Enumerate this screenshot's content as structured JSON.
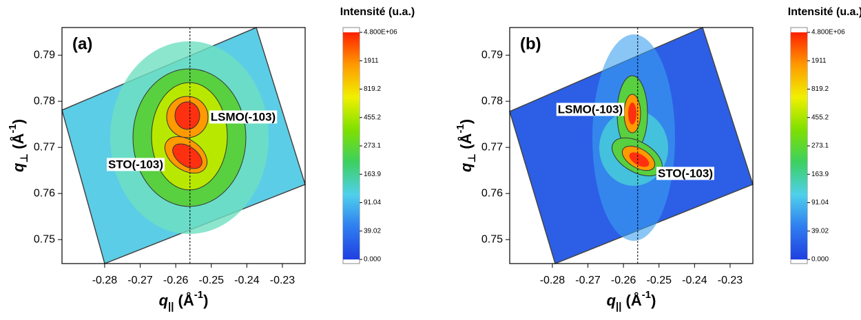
{
  "chart_data": [
    {
      "type": "heatmap",
      "panel_label": "(a)",
      "xlabel": [
        "q",
        "||",
        " (Å",
        "-1",
        ")"
      ],
      "ylabel": [
        "q",
        "⊥",
        " (Å",
        "-1",
        ")"
      ],
      "xlim": [
        -0.292,
        -0.2236
      ],
      "ylim": [
        0.7448,
        0.796
      ],
      "xticks": [
        -0.28,
        -0.27,
        -0.26,
        -0.25,
        -0.24,
        -0.23
      ],
      "yticks": [
        0.75,
        0.76,
        0.77,
        0.78,
        0.79
      ],
      "vline": -0.256,
      "annotations": [
        "LSMO(-103)",
        "STO(-103)"
      ],
      "colorbar": {
        "title": "Intensité (u.a.)",
        "colors": [
          "#1f3fe0",
          "#2f7df0",
          "#4fd0ec",
          "#3cd060",
          "#7fe000",
          "#f0f000",
          "#ff9a00",
          "#ff2000"
        ],
        "ticks": [
          {
            "value": 0,
            "label": "0.000"
          },
          39.02,
          91.04,
          163.9,
          273.1,
          455.2,
          819.2,
          1911,
          {
            "value": 4800000,
            "label": "4.800E+06"
          }
        ]
      }
    },
    {
      "type": "heatmap",
      "panel_label": "(b)",
      "xlabel": [
        "q",
        "||",
        " (Å",
        "-1",
        ")"
      ],
      "ylabel": [
        "q",
        "⊥",
        " (Å",
        "-1",
        ")"
      ],
      "xlim": [
        -0.292,
        -0.2236
      ],
      "ylim": [
        0.7448,
        0.796
      ],
      "xticks": [
        -0.28,
        -0.27,
        -0.26,
        -0.25,
        -0.24,
        -0.23
      ],
      "yticks": [
        0.75,
        0.76,
        0.77,
        0.78,
        0.79
      ],
      "vline": -0.256,
      "annotations": [
        "LSMO(-103)",
        "STO(-103)"
      ],
      "colorbar": {
        "title": "Intensité (u.a.)",
        "colors": [
          "#1f3fe0",
          "#2f7df0",
          "#4fd0ec",
          "#3cd060",
          "#7fe000",
          "#f0f000",
          "#ff9a00",
          "#ff2000"
        ],
        "ticks": [
          {
            "value": 0,
            "label": "0.000"
          },
          39.02,
          91.04,
          163.9,
          273.1,
          455.2,
          819.2,
          1911,
          {
            "value": 4800000,
            "label": "4.800E+06"
          }
        ]
      }
    }
  ]
}
